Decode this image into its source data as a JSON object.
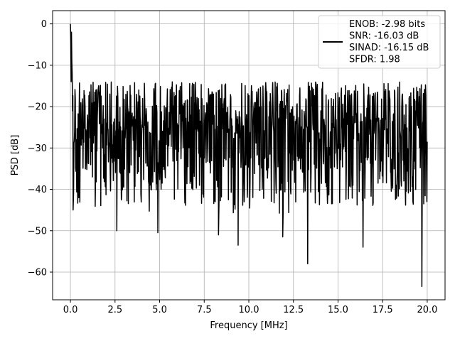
{
  "chart_data": {
    "type": "line",
    "title": "",
    "xlabel": "Frequency [MHz]",
    "ylabel": "PSD [dB]",
    "xlim": [
      -0.999,
      20.999
    ],
    "ylim": [
      -66.7,
      3.2
    ],
    "xticks": [
      0.0,
      2.5,
      5.0,
      7.5,
      10.0,
      12.5,
      15.0,
      17.5,
      20.0
    ],
    "xtick_labels": [
      "0.0",
      "2.5",
      "5.0",
      "7.5",
      "10.0",
      "12.5",
      "15.0",
      "17.5",
      "20.0"
    ],
    "yticks": [
      0,
      -10,
      -20,
      -30,
      -40,
      -50,
      -60
    ],
    "ytick_labels": [
      "0",
      "−10",
      "−20",
      "−30",
      "−40",
      "−50",
      "−60"
    ],
    "grid": true,
    "legend_position": "top-right",
    "legend_entries": [
      "ENOB: -2.98 bits",
      "SNR: -16.03 dB",
      "SINAD: -16.15 dB",
      "SFDR: 1.98"
    ],
    "line_color": "#000000",
    "series": [
      {
        "x_start": 0.0,
        "x_end": 20.0,
        "num_points": 1024,
        "peak": {
          "x": 0.0,
          "y": 0.0
        },
        "typical_upper_envelope": -13,
        "typical_lower_envelope": -38,
        "notable_minima": [
          {
            "x": 0.15,
            "y": -45
          },
          {
            "x": 2.6,
            "y": -50
          },
          {
            "x": 4.9,
            "y": -50.5
          },
          {
            "x": 8.3,
            "y": -51
          },
          {
            "x": 9.4,
            "y": -53.5
          },
          {
            "x": 11.9,
            "y": -51.5
          },
          {
            "x": 13.3,
            "y": -58
          },
          {
            "x": 16.4,
            "y": -54
          },
          {
            "x": 19.7,
            "y": -63.5
          }
        ]
      }
    ]
  }
}
